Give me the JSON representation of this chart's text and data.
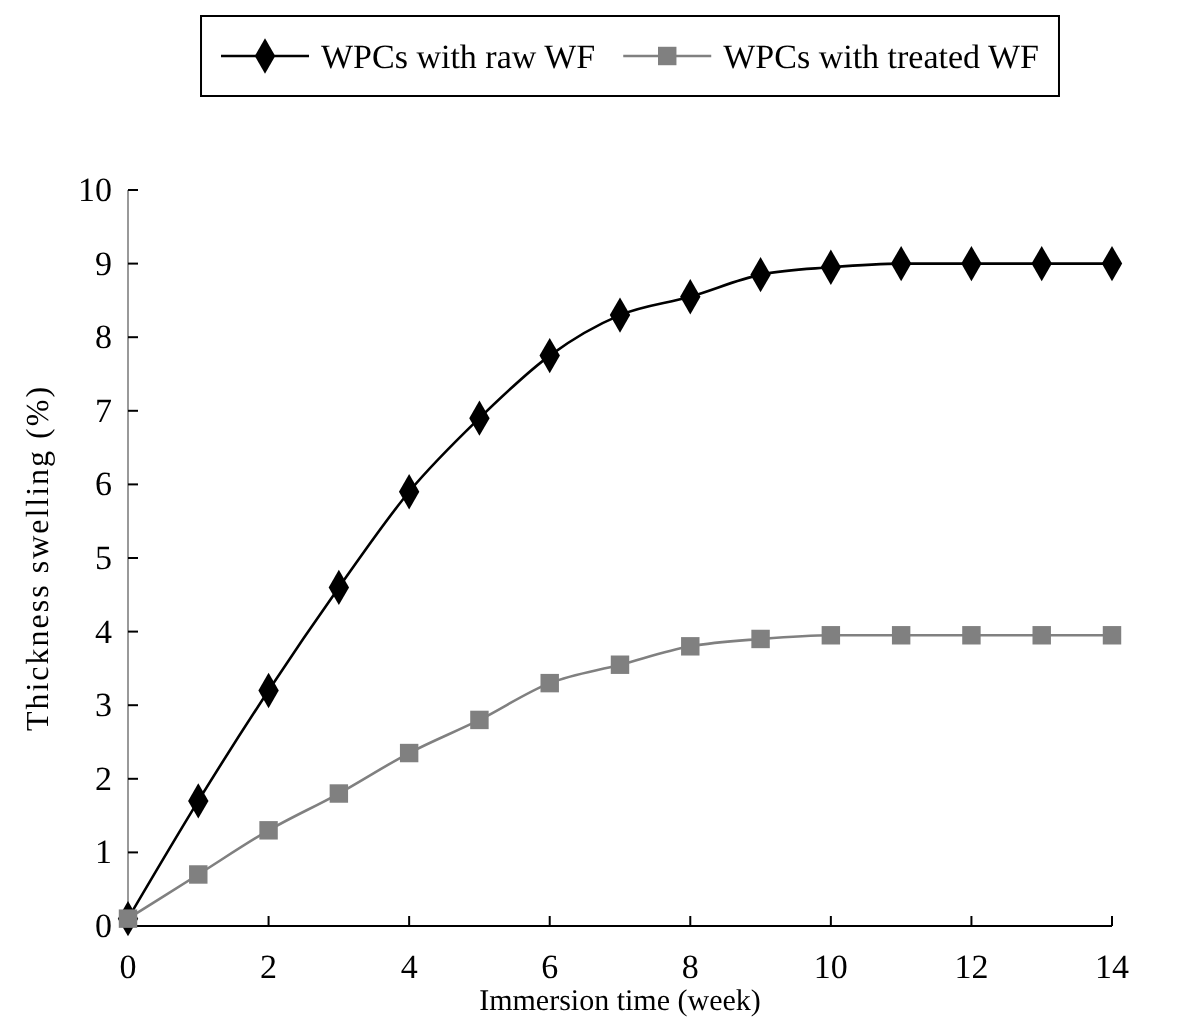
{
  "chart_data": {
    "type": "line",
    "xlabel": "Immersion time (week)",
    "ylabel": "Thickness swelling (%)",
    "x": [
      0,
      1,
      2,
      3,
      4,
      5,
      6,
      7,
      8,
      9,
      10,
      11,
      12,
      13,
      14
    ],
    "series": [
      {
        "name": "WPCs with raw WF",
        "color": "#000000",
        "marker": "diamond",
        "values": [
          0.1,
          1.7,
          3.2,
          4.6,
          5.9,
          6.9,
          7.75,
          8.3,
          8.55,
          8.85,
          8.95,
          9.0,
          9.0,
          9.0,
          9.0
        ]
      },
      {
        "name": "WPCs with treated WF",
        "color": "#808080",
        "marker": "square",
        "values": [
          0.1,
          0.7,
          1.3,
          1.8,
          2.35,
          2.8,
          3.3,
          3.55,
          3.8,
          3.9,
          3.95,
          3.95,
          3.95,
          3.95,
          3.95
        ]
      }
    ],
    "xlim": [
      0,
      14
    ],
    "xticks": [
      0,
      2,
      4,
      6,
      8,
      10,
      12,
      14
    ],
    "ylim": [
      0,
      10
    ],
    "yticks": [
      0,
      1,
      2,
      3,
      4,
      5,
      6,
      7,
      8,
      9,
      10
    ],
    "grid": false,
    "legend": "top",
    "line_style": "solid"
  }
}
